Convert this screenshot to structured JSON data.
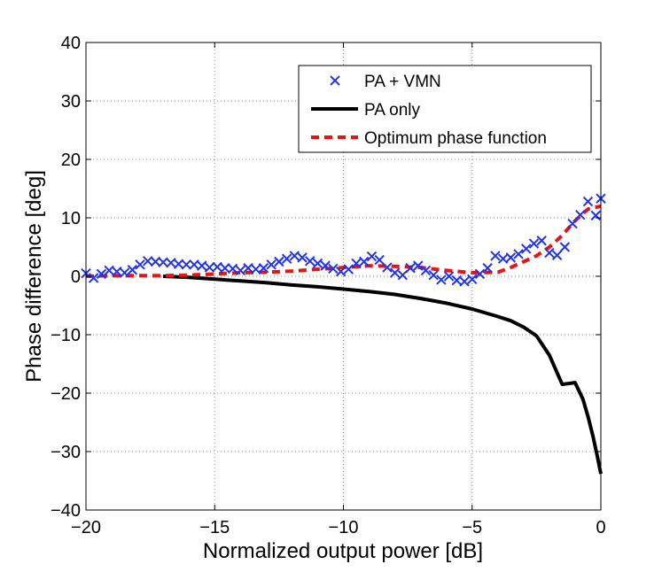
{
  "chart_data": {
    "type": "line",
    "title": "",
    "xlabel": "Normalized output power [dB]",
    "ylabel": "Phase difference [deg]",
    "xlim": [
      -20,
      0
    ],
    "ylim": [
      -40,
      40
    ],
    "grid": true,
    "legend_position": "top-right",
    "x_ticks": [
      -20,
      -15,
      -10,
      -5,
      0
    ],
    "x_tick_labels": [
      "−20",
      "−15",
      "−10",
      "−5",
      "0"
    ],
    "y_ticks": [
      -40,
      -30,
      -20,
      -10,
      0,
      10,
      20,
      30,
      40
    ],
    "y_tick_labels": [
      "−40",
      "−30",
      "−20",
      "−10",
      "0",
      "10",
      "20",
      "30",
      "40"
    ],
    "series": [
      {
        "name": "PA + VMN",
        "style": "markers-x",
        "color": "#2233ee",
        "x": [
          -20.0,
          -19.7,
          -19.4,
          -19.1,
          -18.8,
          -18.5,
          -18.2,
          -17.9,
          -17.6,
          -17.3,
          -17.0,
          -16.7,
          -16.4,
          -16.1,
          -15.8,
          -15.5,
          -15.2,
          -14.9,
          -14.6,
          -14.3,
          -14.0,
          -13.7,
          -13.4,
          -13.1,
          -12.8,
          -12.5,
          -12.2,
          -11.9,
          -11.6,
          -11.3,
          -11.0,
          -10.7,
          -10.4,
          -10.1,
          -9.8,
          -9.5,
          -9.2,
          -8.9,
          -8.6,
          -8.3,
          -8.0,
          -7.7,
          -7.4,
          -7.1,
          -6.8,
          -6.5,
          -6.2,
          -5.9,
          -5.6,
          -5.3,
          -5.0,
          -4.7,
          -4.4,
          -4.1,
          -3.8,
          -3.5,
          -3.2,
          -2.9,
          -2.6,
          -2.3,
          -2.0,
          -1.7,
          -1.4,
          -1.1,
          -0.8,
          -0.5,
          -0.2,
          0.0
        ],
        "y": [
          0.5,
          -0.3,
          0.4,
          1.0,
          0.8,
          0.6,
          1.1,
          2.0,
          2.6,
          2.5,
          2.4,
          2.3,
          2.1,
          2.0,
          2.0,
          1.8,
          1.5,
          1.6,
          1.4,
          1.3,
          1.0,
          1.4,
          1.2,
          1.4,
          2.0,
          2.5,
          3.0,
          3.5,
          3.2,
          2.6,
          2.2,
          1.8,
          1.3,
          0.8,
          1.2,
          2.2,
          2.5,
          3.4,
          2.8,
          1.5,
          0.6,
          0.2,
          1.4,
          1.8,
          1.0,
          0.2,
          -0.6,
          0.0,
          -0.7,
          -0.9,
          -0.5,
          0.4,
          1.4,
          3.5,
          3.0,
          3.2,
          3.8,
          4.7,
          5.6,
          6.1,
          4.0,
          3.6,
          5.0,
          9.0,
          10.5,
          12.8,
          10.4,
          13.3
        ]
      },
      {
        "name": "PA only",
        "style": "solid",
        "color": "#000000",
        "x": [
          -17.0,
          -16.0,
          -15.0,
          -14.0,
          -13.0,
          -12.0,
          -11.0,
          -10.0,
          -9.0,
          -8.0,
          -7.0,
          -6.0,
          -5.0,
          -4.0,
          -3.5,
          -3.0,
          -2.5,
          -2.0,
          -1.5,
          -1.0,
          -0.7,
          -0.5,
          -0.3,
          -0.15,
          0.0
        ],
        "y": [
          0.0,
          -0.2,
          -0.5,
          -0.8,
          -1.1,
          -1.5,
          -1.8,
          -2.2,
          -2.6,
          -3.1,
          -3.8,
          -4.6,
          -5.6,
          -6.9,
          -7.6,
          -8.7,
          -10.2,
          -13.5,
          -18.5,
          -18.2,
          -21.0,
          -24.0,
          -27.5,
          -30.5,
          -33.8
        ]
      },
      {
        "name": "Optimum phase function",
        "style": "dashed",
        "color": "#ee1111",
        "x": [
          -20.0,
          -19.0,
          -18.0,
          -17.0,
          -16.0,
          -15.0,
          -14.0,
          -13.0,
          -12.0,
          -11.0,
          -10.0,
          -9.0,
          -8.0,
          -7.0,
          -6.0,
          -5.0,
          -4.0,
          -3.5,
          -3.0,
          -2.5,
          -2.0,
          -1.5,
          -1.0,
          -0.5,
          0.0
        ],
        "y": [
          0.0,
          0.1,
          0.1,
          0.1,
          0.2,
          0.4,
          0.6,
          0.7,
          0.9,
          1.2,
          1.5,
          1.8,
          1.7,
          1.5,
          1.0,
          0.6,
          0.7,
          1.5,
          2.5,
          3.5,
          5.0,
          7.0,
          9.5,
          11.5,
          12.0
        ]
      }
    ]
  }
}
